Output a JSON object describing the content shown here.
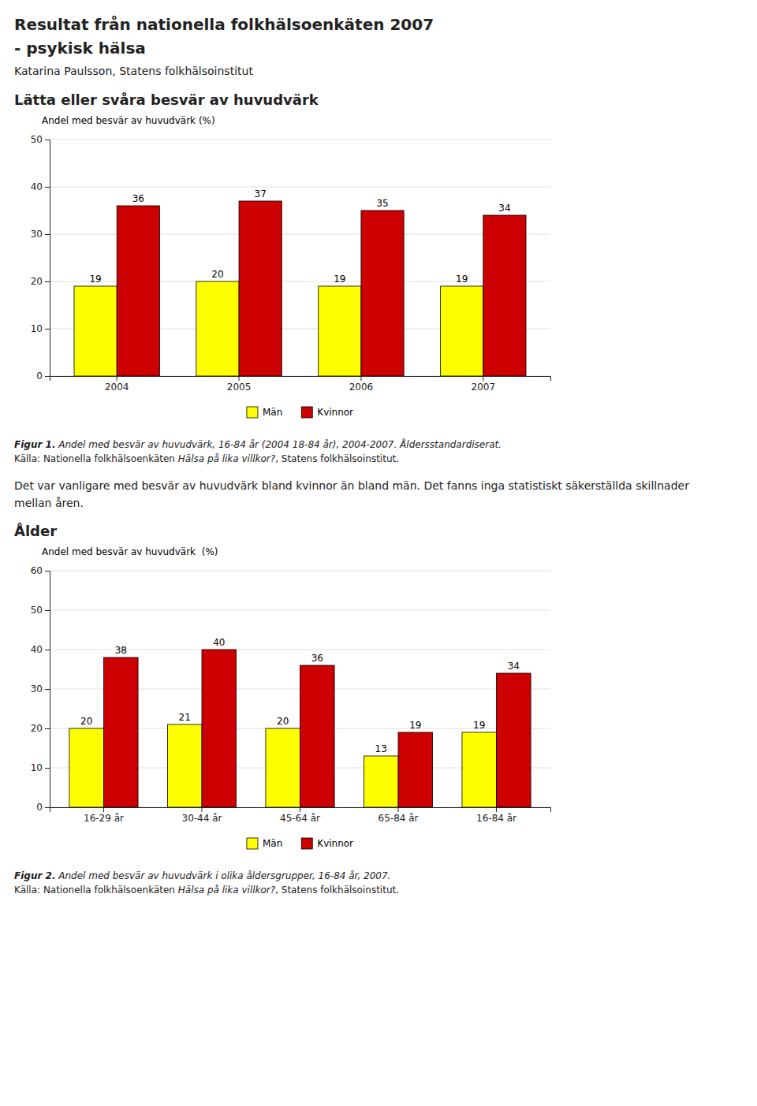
{
  "title": "Resultat från nationella folkhälsoenkäten 2007",
  "subtitle": "- psykisk hälsa",
  "annotations": [
    "Katarina Paulsson, Statens folkhälsoinstitut",
    "Det var vanligare med besvär av huvudvärk bland kvinnor än bland män. Det fanns inga statistiskt säkerställda skillnader mellan åren."
  ],
  "chart_data": [
    {
      "type": "bar",
      "title": "Lätta eller svåra besvär av huvudvärk",
      "ylabel": "Andel med besvär av huvudvärk (%)",
      "categories": [
        "2004",
        "2005",
        "2006",
        "2007"
      ],
      "series": [
        {
          "name": "Män",
          "color": "#FFFF00",
          "values": [
            19,
            20,
            19,
            19
          ]
        },
        {
          "name": "Kvinnor",
          "color": "#CC0000",
          "values": [
            36,
            37,
            35,
            34
          ]
        }
      ],
      "ylim": [
        0,
        50
      ],
      "yticks": [
        0,
        10,
        20,
        30,
        40,
        50
      ],
      "grid": true,
      "legend": "bottom",
      "data_labels": true,
      "annotations": [
        "Figur 1.",
        " Andel med besvär av huvudvärk, 16-84 år (2004 18-84 år), 2004-2007. Åldersstandardiserat.",
        "Källa: Nationella folkhälsoenkäten ",
        "Hälsa på lika villkor?",
        ", Statens folkhälsoinstitut."
      ]
    },
    {
      "type": "bar",
      "title": "Ålder",
      "ylabel": "Andel med besvär av huvudvärk  (%)",
      "categories": [
        "16-29 år",
        "30-44 år",
        "45-64 år",
        "65-84 år",
        "16-84 år"
      ],
      "series": [
        {
          "name": "Män",
          "color": "#FFFF00",
          "values": [
            20,
            21,
            20,
            13,
            19
          ]
        },
        {
          "name": "Kvinnor",
          "color": "#CC0000",
          "values": [
            38,
            40,
            36,
            19,
            34
          ]
        }
      ],
      "ylim": [
        0,
        60
      ],
      "yticks": [
        0,
        10,
        20,
        30,
        40,
        50,
        60
      ],
      "grid": true,
      "legend": "bottom",
      "data_labels": true,
      "annotations": [
        "Figur 2.",
        " Andel med besvär av huvudvärk i olika åldersgrupper, 16-84 år, 2007.",
        "Källa: Nationella folkhälsoenkäten ",
        "Hälsa på lika villkor?",
        ", Statens folkhälsoinstitut."
      ]
    }
  ]
}
